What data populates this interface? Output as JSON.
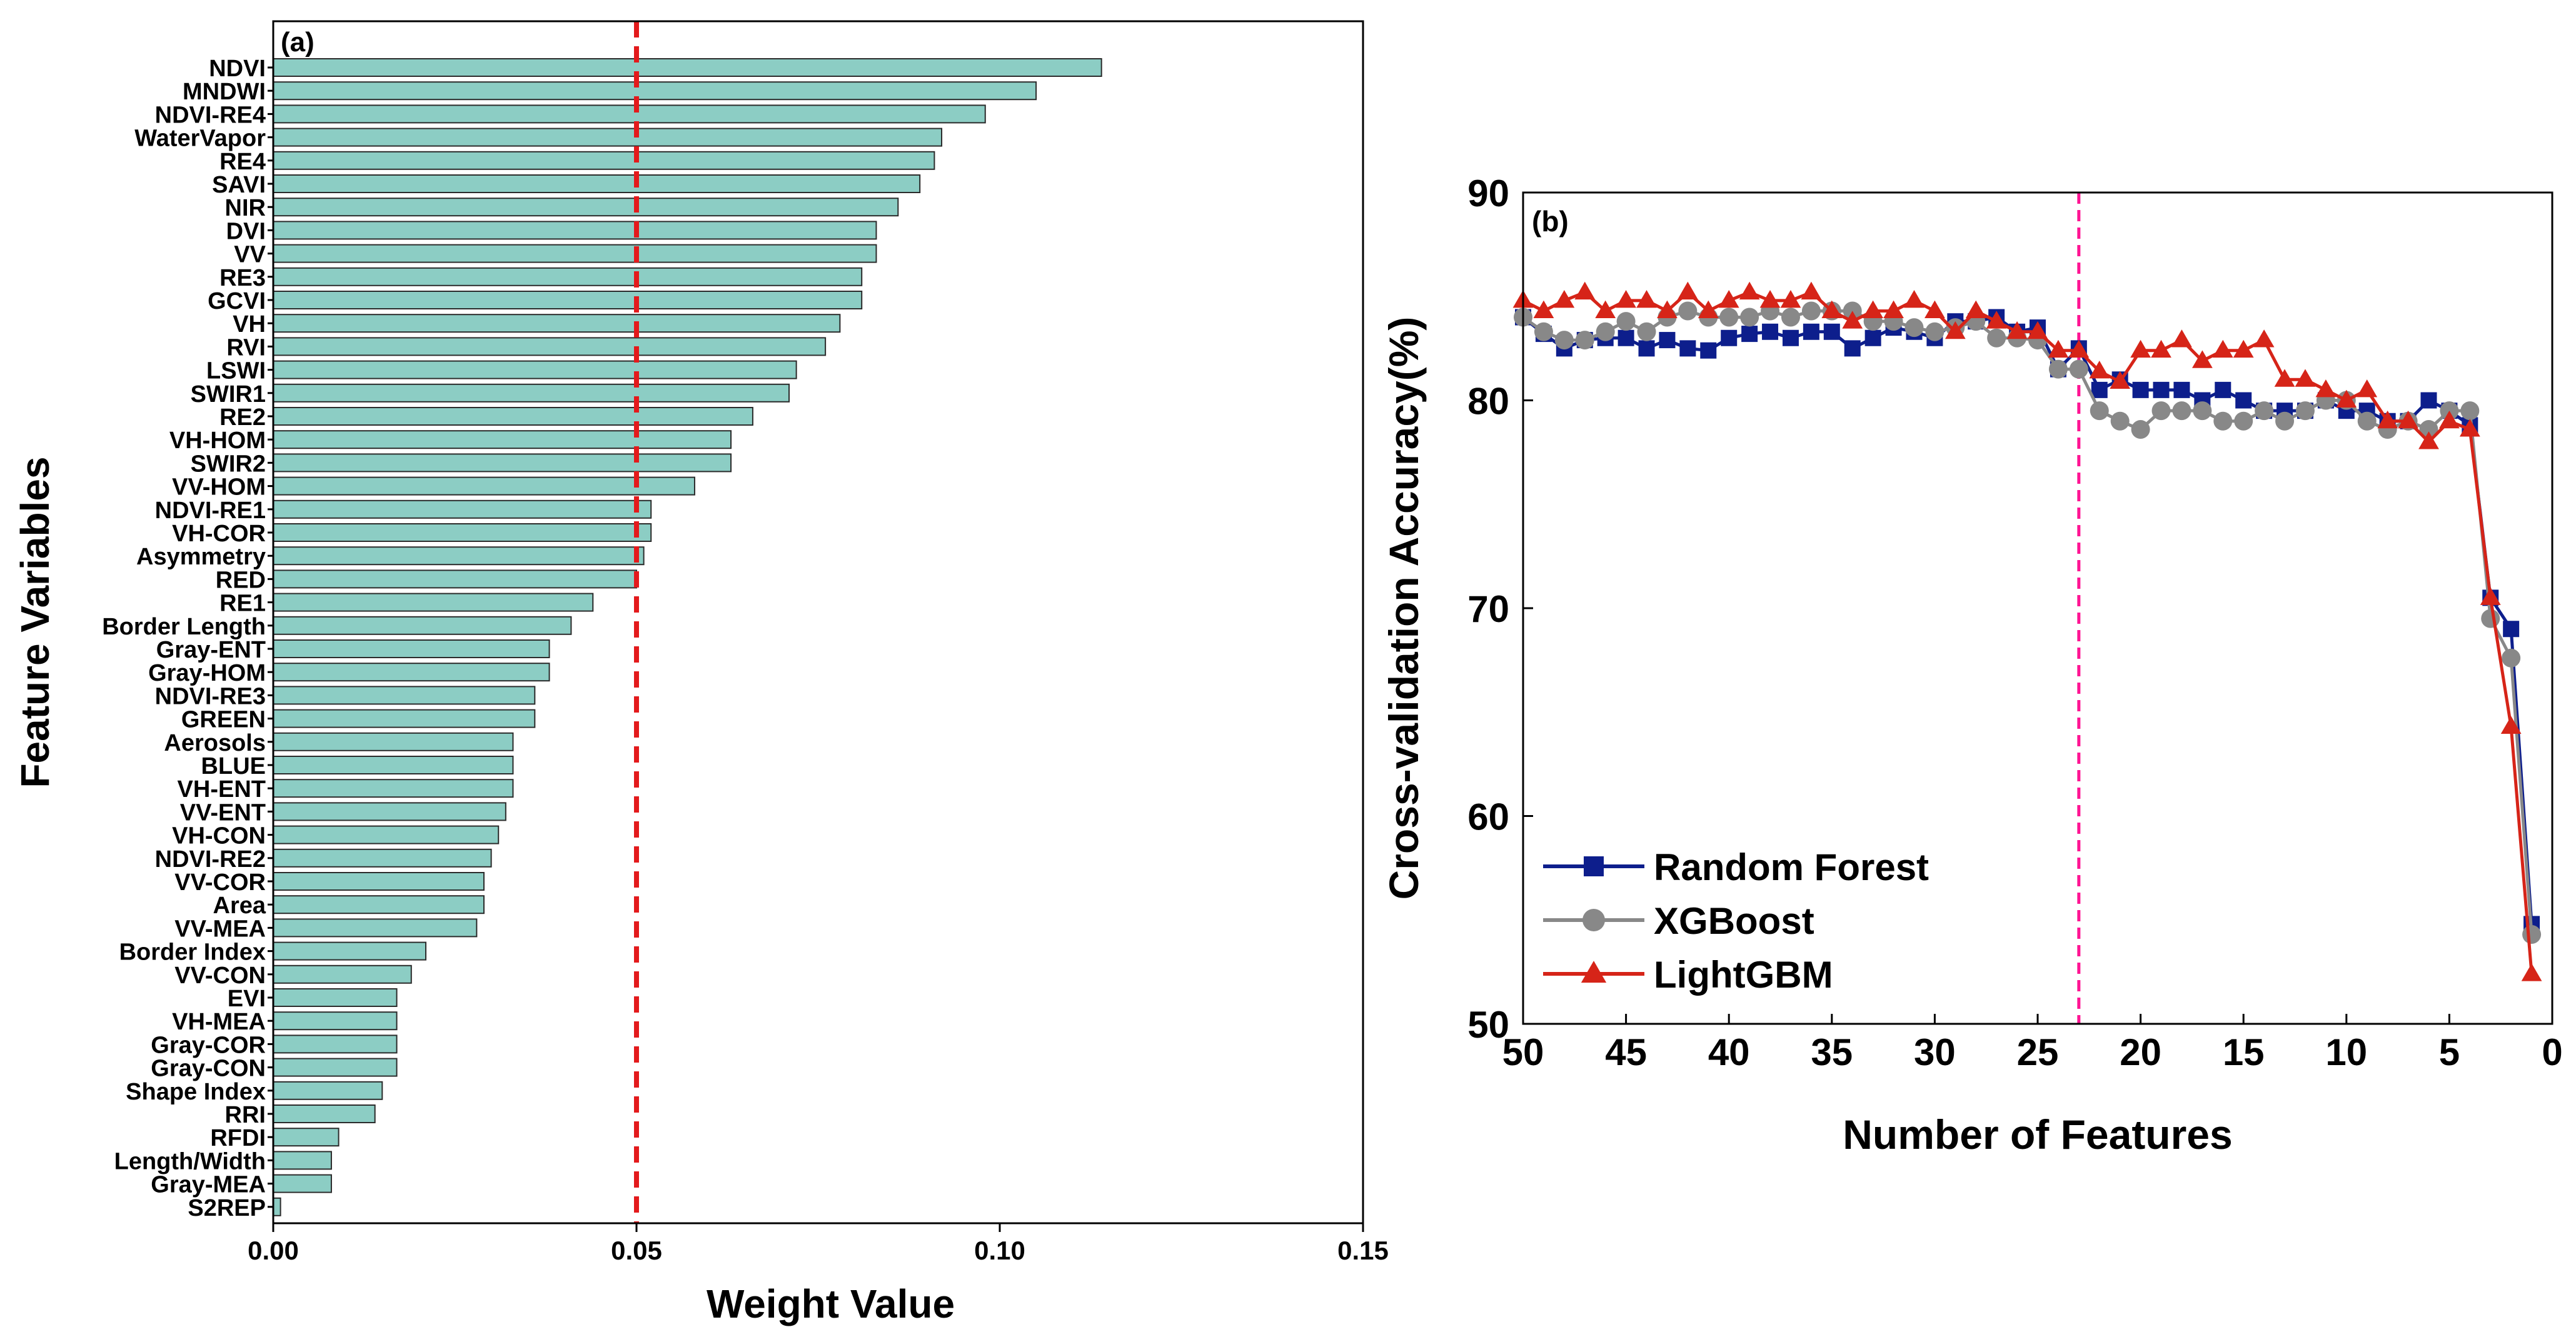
{
  "chart_data": [
    {
      "type": "bar",
      "orientation": "horizontal",
      "panel_label": "(a)",
      "xlabel": "Weight Value",
      "ylabel": "Feature Variables",
      "xlim": [
        0.0,
        0.15
      ],
      "x_ticks": [
        0.0,
        0.05,
        0.1,
        0.15
      ],
      "x_tick_labels": [
        "0.00",
        "0.05",
        "0.10",
        "0.15"
      ],
      "threshold_line": 0.05,
      "bar_color": "#8ccdc4",
      "line_color": "#e31a1c",
      "categories": [
        "NDVI",
        "MNDWI",
        "NDVI-RE4",
        "WaterVapor",
        "RE4",
        "SAVI",
        "NIR",
        "DVI",
        "VV",
        "RE3",
        "GCVI",
        "VH",
        "RVI",
        "LSWI",
        "SWIR1",
        "RE2",
        "VH-HOM",
        "SWIR2",
        "VV-HOM",
        "NDVI-RE1",
        "VH-COR",
        "Asymmetry",
        "RED",
        "RE1",
        "Border Length",
        "Gray-ENT",
        "Gray-HOM",
        "NDVI-RE3",
        "GREEN",
        "Aerosols",
        "BLUE",
        "VH-ENT",
        "VV-ENT",
        "VH-CON",
        "NDVI-RE2",
        "VV-COR",
        "Area",
        "VV-MEA",
        "Border Index",
        "VV-CON",
        "EVI",
        "VH-MEA",
        "Gray-COR",
        "Gray-CON",
        "Shape Index",
        "RRI",
        "RFDI",
        "Length/Width",
        "Gray-MEA",
        "S2REP"
      ],
      "values": [
        0.114,
        0.105,
        0.098,
        0.092,
        0.091,
        0.089,
        0.086,
        0.083,
        0.083,
        0.081,
        0.081,
        0.078,
        0.076,
        0.072,
        0.071,
        0.066,
        0.063,
        0.063,
        0.058,
        0.052,
        0.052,
        0.051,
        0.05,
        0.044,
        0.041,
        0.038,
        0.038,
        0.036,
        0.036,
        0.033,
        0.033,
        0.033,
        0.032,
        0.031,
        0.03,
        0.029,
        0.029,
        0.028,
        0.021,
        0.019,
        0.017,
        0.017,
        0.017,
        0.017,
        0.015,
        0.014,
        0.009,
        0.008,
        0.008,
        0.001
      ]
    },
    {
      "type": "line",
      "panel_label": "(b)",
      "xlabel": "Number of Features",
      "ylabel": "Cross-validation Accuracy(%)",
      "xlim": [
        50,
        0
      ],
      "ylim": [
        50,
        90
      ],
      "x_ticks": [
        50,
        45,
        40,
        35,
        30,
        25,
        20,
        15,
        10,
        5,
        0
      ],
      "y_ticks": [
        50,
        60,
        70,
        80,
        90
      ],
      "threshold_line": 23,
      "line_color": "#ff1493",
      "legend_position": "bottom-left",
      "x": [
        50,
        49,
        48,
        47,
        46,
        45,
        44,
        43,
        42,
        41,
        40,
        39,
        38,
        37,
        36,
        35,
        34,
        33,
        32,
        31,
        30,
        29,
        28,
        27,
        26,
        25,
        24,
        23,
        22,
        21,
        20,
        19,
        18,
        17,
        16,
        15,
        14,
        13,
        12,
        11,
        10,
        9,
        8,
        7,
        6,
        5,
        4,
        3,
        2,
        1
      ],
      "series": [
        {
          "name": "Random Forest",
          "color": "#0d1e8c",
          "marker": "square",
          "values": [
            84.0,
            83.2,
            82.5,
            82.9,
            83.0,
            83.0,
            82.5,
            82.9,
            82.5,
            82.4,
            83.0,
            83.2,
            83.3,
            83.0,
            83.3,
            83.3,
            82.5,
            83.0,
            83.5,
            83.3,
            83.0,
            83.8,
            83.8,
            84.0,
            83.3,
            83.5,
            81.5,
            82.5,
            80.5,
            81.0,
            80.5,
            80.5,
            80.5,
            80.0,
            80.5,
            80.0,
            79.5,
            79.5,
            79.5,
            80.0,
            79.5,
            79.5,
            79.0,
            79.0,
            80.0,
            79.5,
            78.8,
            70.5,
            69.0,
            54.8
          ]
        },
        {
          "name": "XGBoost",
          "color": "#888888",
          "marker": "circle",
          "values": [
            84.0,
            83.3,
            82.9,
            82.9,
            83.3,
            83.8,
            83.3,
            84.0,
            84.3,
            84.0,
            84.0,
            84.0,
            84.3,
            84.0,
            84.3,
            84.3,
            84.3,
            83.8,
            83.8,
            83.5,
            83.3,
            83.5,
            83.8,
            83.0,
            83.0,
            82.9,
            81.5,
            81.5,
            79.5,
            79.0,
            78.6,
            79.5,
            79.5,
            79.5,
            79.0,
            79.0,
            79.5,
            79.0,
            79.5,
            80.0,
            80.0,
            79.0,
            78.6,
            79.0,
            78.6,
            79.5,
            79.5,
            69.5,
            67.6,
            54.3
          ]
        },
        {
          "name": "LightGBM",
          "color": "#d62418",
          "marker": "triangle",
          "values": [
            84.8,
            84.3,
            84.8,
            85.2,
            84.3,
            84.8,
            84.8,
            84.3,
            85.2,
            84.3,
            84.8,
            85.2,
            84.8,
            84.8,
            85.2,
            84.3,
            83.8,
            84.3,
            84.3,
            84.8,
            84.3,
            83.3,
            84.3,
            83.8,
            83.3,
            83.3,
            82.4,
            82.4,
            81.4,
            80.9,
            82.4,
            82.4,
            82.9,
            81.9,
            82.4,
            82.4,
            82.9,
            81.0,
            81.0,
            80.5,
            80.0,
            80.5,
            79.0,
            79.0,
            78.0,
            79.0,
            78.6,
            70.5,
            64.3,
            52.4
          ]
        }
      ]
    }
  ]
}
